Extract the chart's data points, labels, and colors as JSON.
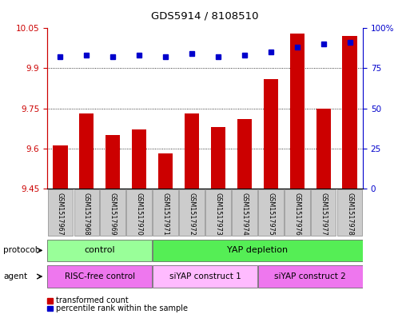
{
  "title": "GDS5914 / 8108510",
  "samples": [
    "GSM1517967",
    "GSM1517968",
    "GSM1517969",
    "GSM1517970",
    "GSM1517971",
    "GSM1517972",
    "GSM1517973",
    "GSM1517974",
    "GSM1517975",
    "GSM1517976",
    "GSM1517977",
    "GSM1517978"
  ],
  "transformed_count": [
    9.61,
    9.73,
    9.65,
    9.67,
    9.58,
    9.73,
    9.68,
    9.71,
    9.86,
    10.03,
    9.75,
    10.02
  ],
  "percentile_rank": [
    82,
    83,
    82,
    83,
    82,
    84,
    82,
    83,
    85,
    88,
    90,
    91
  ],
  "ylim_left": [
    9.45,
    10.05
  ],
  "ylim_right": [
    0,
    100
  ],
  "yticks_left": [
    9.45,
    9.6,
    9.75,
    9.9,
    10.05
  ],
  "yticks_right": [
    0,
    25,
    50,
    75,
    100
  ],
  "bar_color": "#cc0000",
  "dot_color": "#0000cc",
  "protocol_labels": [
    {
      "text": "control",
      "start": 0,
      "end": 3,
      "color": "#99ff99"
    },
    {
      "text": "YAP depletion",
      "start": 4,
      "end": 11,
      "color": "#55ee55"
    }
  ],
  "agent_labels": [
    {
      "text": "RISC-free control",
      "start": 0,
      "end": 3,
      "color": "#ee77ee"
    },
    {
      "text": "siYAP construct 1",
      "start": 4,
      "end": 7,
      "color": "#ffbbff"
    },
    {
      "text": "siYAP construct 2",
      "start": 8,
      "end": 11,
      "color": "#ee77ee"
    }
  ],
  "protocol_row_label": "protocol",
  "agent_row_label": "agent",
  "legend_bar_label": "transformed count",
  "legend_dot_label": "percentile rank within the sample",
  "gridlines": [
    9.6,
    9.75,
    9.9
  ]
}
